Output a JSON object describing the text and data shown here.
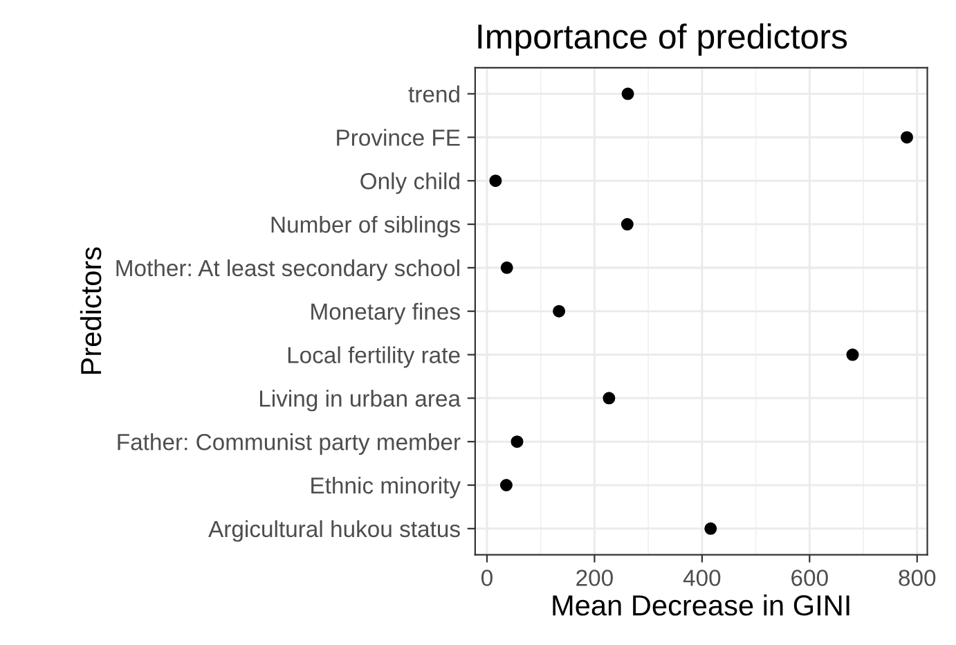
{
  "chart_data": {
    "type": "scatter",
    "orientation": "horizontal",
    "title": "Importance of predictors",
    "xlabel": "Mean Decrease in GINI",
    "ylabel": "Predictors",
    "categories": [
      "trend",
      "Province FE",
      "Only child",
      "Number of siblings",
      "Mother: At least secondary school",
      "Monetary fines",
      "Local fertility rate",
      "Living in urban area",
      "Father: Communist party member",
      "Ethnic minority",
      "Argicultural hukou status"
    ],
    "values": [
      262,
      781,
      16,
      261,
      37,
      134,
      680,
      227,
      56,
      36,
      416
    ],
    "color": "#000000",
    "marker": "circle",
    "xlim": [
      -22,
      819
    ],
    "xticks": [
      0,
      200,
      400,
      600,
      800
    ],
    "grid": true,
    "legend": false
  }
}
